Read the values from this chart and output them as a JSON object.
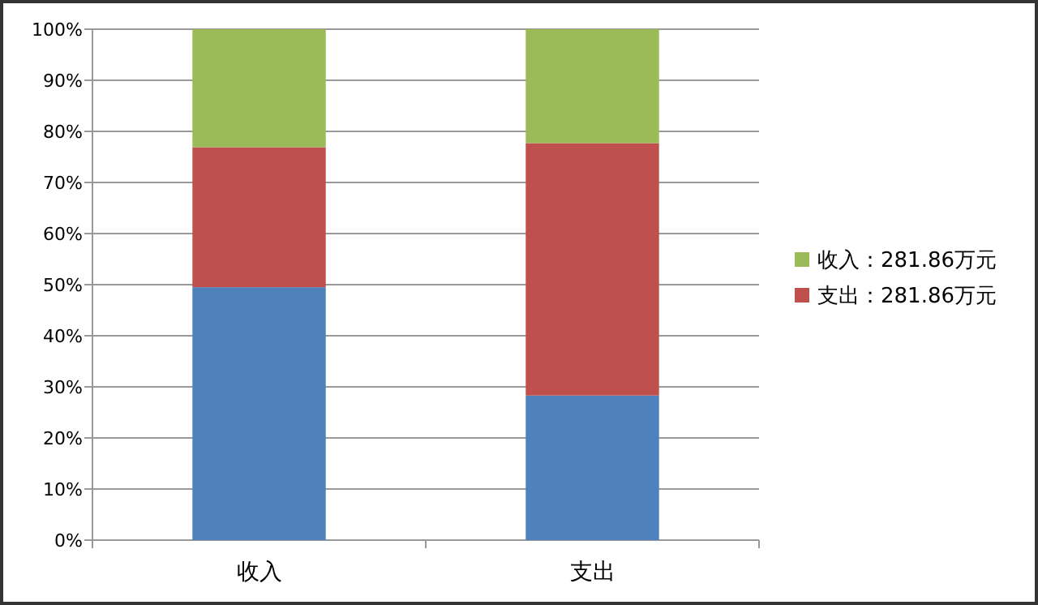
{
  "chart_data": {
    "type": "bar",
    "stacked": true,
    "categories": [
      "收入",
      "支出"
    ],
    "series": [
      {
        "color": "#4f81bd",
        "values": [
          49.5,
          28.3
        ]
      },
      {
        "name": "支出：281.86万元",
        "color": "#c0504d",
        "values": [
          27.4,
          49.4
        ]
      },
      {
        "name": "收入：281.86万元",
        "color": "#9bbb59",
        "values": [
          23.1,
          22.3
        ]
      }
    ],
    "ylim": [
      0,
      100
    ],
    "yticks": [
      {
        "value": 0,
        "label": "0%"
      },
      {
        "value": 10,
        "label": "10%"
      },
      {
        "value": 20,
        "label": "20%"
      },
      {
        "value": 30,
        "label": "30%"
      },
      {
        "value": 40,
        "label": "40%"
      },
      {
        "value": 50,
        "label": "50%"
      },
      {
        "value": 60,
        "label": "60%"
      },
      {
        "value": 70,
        "label": "70%"
      },
      {
        "value": 80,
        "label": "80%"
      },
      {
        "value": 90,
        "label": "90%"
      },
      {
        "value": 100,
        "label": "100%"
      }
    ],
    "grid": "y",
    "legend": "right"
  }
}
